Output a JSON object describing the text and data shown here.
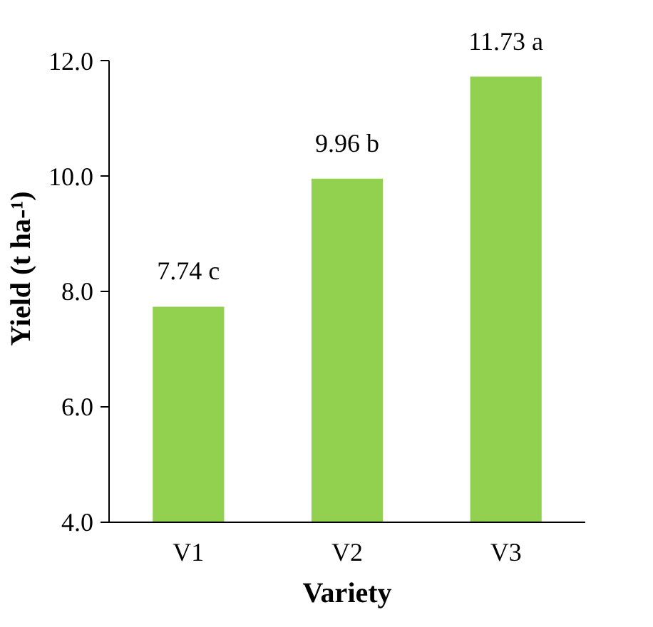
{
  "chart_data": {
    "type": "bar",
    "xlabel": "Variety",
    "ylabel": "Yield (t ha-¹)",
    "categories": [
      "V1",
      "V2",
      "V3"
    ],
    "values": [
      7.74,
      9.96,
      11.73
    ],
    "value_labels": [
      "7.74 c",
      "9.96 b",
      "11.73 a"
    ],
    "color": "#92d050",
    "ylim": [
      4,
      12
    ],
    "yticks": [
      {
        "value": 4,
        "label": "4.0"
      },
      {
        "value": 6,
        "label": "6.0"
      },
      {
        "value": 8,
        "label": "8.0"
      },
      {
        "value": 10,
        "label": "10.0"
      },
      {
        "value": 12,
        "label": "12.0"
      }
    ],
    "grid": false
  }
}
